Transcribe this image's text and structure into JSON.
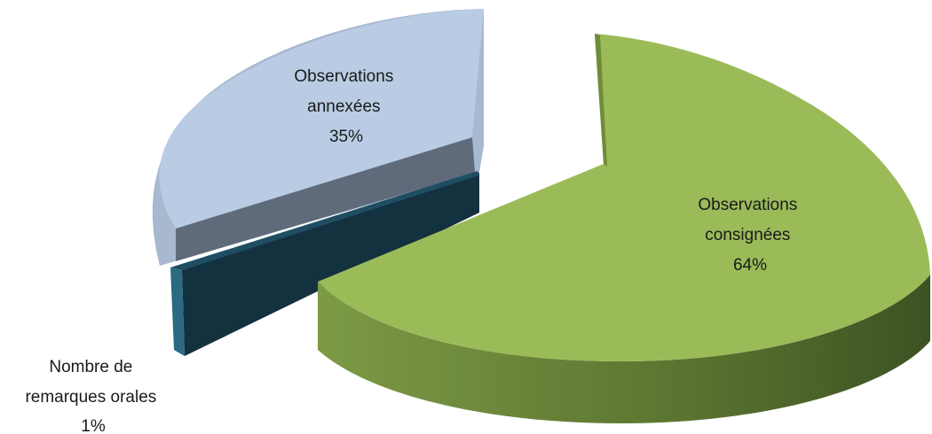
{
  "chart_data": {
    "type": "pie",
    "title": "",
    "series": [
      {
        "values": [
          64,
          35,
          1
        ],
        "labels": [
          "Observations consignées",
          "Observations annexées",
          "Nombre de remarques orales"
        ]
      }
    ],
    "slices": [
      {
        "label_lines": [
          "Observations",
          "consignées"
        ],
        "value": 64,
        "value_label": "64%",
        "color": "#9bbb59",
        "side_color": "#5a7a2c"
      },
      {
        "label_lines": [
          "Observations",
          "annexées"
        ],
        "value": 35,
        "value_label": "35%",
        "color": "#b9cce4",
        "side_color": "#8ea4c2"
      },
      {
        "label_lines": [
          "Nombre de",
          "remarques orales"
        ],
        "value": 1,
        "value_label": "1%",
        "color": "#1f4e63",
        "side_color": "#16323f"
      }
    ],
    "style": "3d-exploded",
    "legend": "none",
    "data_labels": "category-and-percent"
  }
}
